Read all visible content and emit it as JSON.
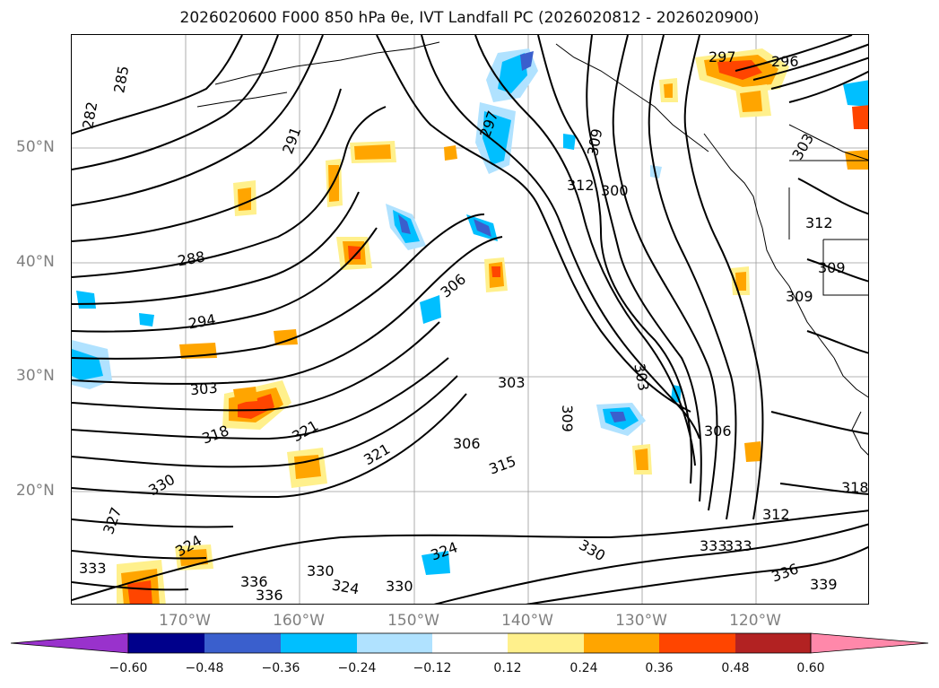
{
  "title": "2026020600 F000 850 hPa θe, IVT Landfall PC (2026020812 - 2026020900)",
  "lat_labels": [
    "50°N",
    "40°N",
    "30°N",
    "20°N"
  ],
  "lon_labels": [
    "170°W",
    "160°W",
    "150°W",
    "140°W",
    "130°W",
    "120°W"
  ],
  "colorbar": {
    "ticks": [
      "−0.60",
      "−0.48",
      "−0.36",
      "−0.24",
      "−0.12",
      "0.12",
      "0.24",
      "0.36",
      "0.48",
      "0.60"
    ],
    "colors": [
      "#9932cc",
      "#00008b",
      "#3a5fcd",
      "#00bfff",
      "#b0e2ff",
      "#ffffff",
      "#fff08c",
      "#ffa500",
      "#ff4500",
      "#b22222",
      "#ff88aa"
    ]
  },
  "contour_labels": [
    "285",
    "282",
    "291",
    "288",
    "294",
    "303",
    "318",
    "321",
    "330",
    "327",
    "324",
    "336",
    "333",
    "297",
    "306",
    "300",
    "312",
    "309",
    "315",
    "303",
    "306",
    "309",
    "312",
    "318",
    "330",
    "336",
    "339",
    "297",
    "296",
    "303",
    "312",
    "309",
    "309",
    "303",
    "306",
    "321",
    "324",
    "330",
    "324",
    "330",
    "336",
    "333",
    "333"
  ]
}
